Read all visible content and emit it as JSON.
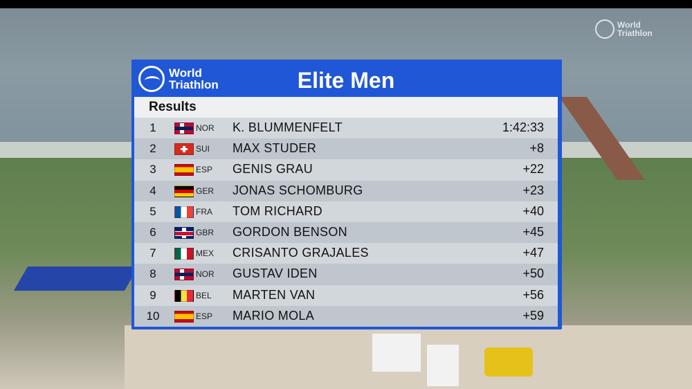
{
  "watermark": {
    "brand_line1": "World",
    "brand_line2": "Triathlon"
  },
  "board": {
    "logo_line1": "World",
    "logo_line2": "Triathlon",
    "title": "Elite Men",
    "subtitle": "Results",
    "accent_color": "#1f57d6"
  },
  "results": [
    {
      "rank": "1",
      "flag": "flag-norway",
      "country": "NOR",
      "name": "K. BLUMMENFELT",
      "time": "1:42:33"
    },
    {
      "rank": "2",
      "flag": "flag-switzerland",
      "country": "SUI",
      "name": "MAX STUDER",
      "time": "+8"
    },
    {
      "rank": "3",
      "flag": "flag-spain",
      "country": "ESP",
      "name": "GENIS GRAU",
      "time": "+22"
    },
    {
      "rank": "4",
      "flag": "flag-germany",
      "country": "GER",
      "name": "JONAS SCHOMBURG",
      "time": "+23"
    },
    {
      "rank": "5",
      "flag": "flag-france",
      "country": "FRA",
      "name": "TOM RICHARD",
      "time": "+40"
    },
    {
      "rank": "6",
      "flag": "flag-great-britain",
      "country": "GBR",
      "name": "GORDON BENSON",
      "time": "+45"
    },
    {
      "rank": "7",
      "flag": "flag-mexico",
      "country": "MEX",
      "name": "CRISANTO GRAJALES",
      "time": "+47"
    },
    {
      "rank": "8",
      "flag": "flag-norway",
      "country": "NOR",
      "name": "GUSTAV IDEN",
      "time": "+50"
    },
    {
      "rank": "9",
      "flag": "flag-belgium",
      "country": "BEL",
      "name": "MARTEN VAN",
      "time": "+56"
    },
    {
      "rank": "10",
      "flag": "flag-spain",
      "country": "ESP",
      "name": "MARIO MOLA",
      "time": "+59"
    }
  ]
}
